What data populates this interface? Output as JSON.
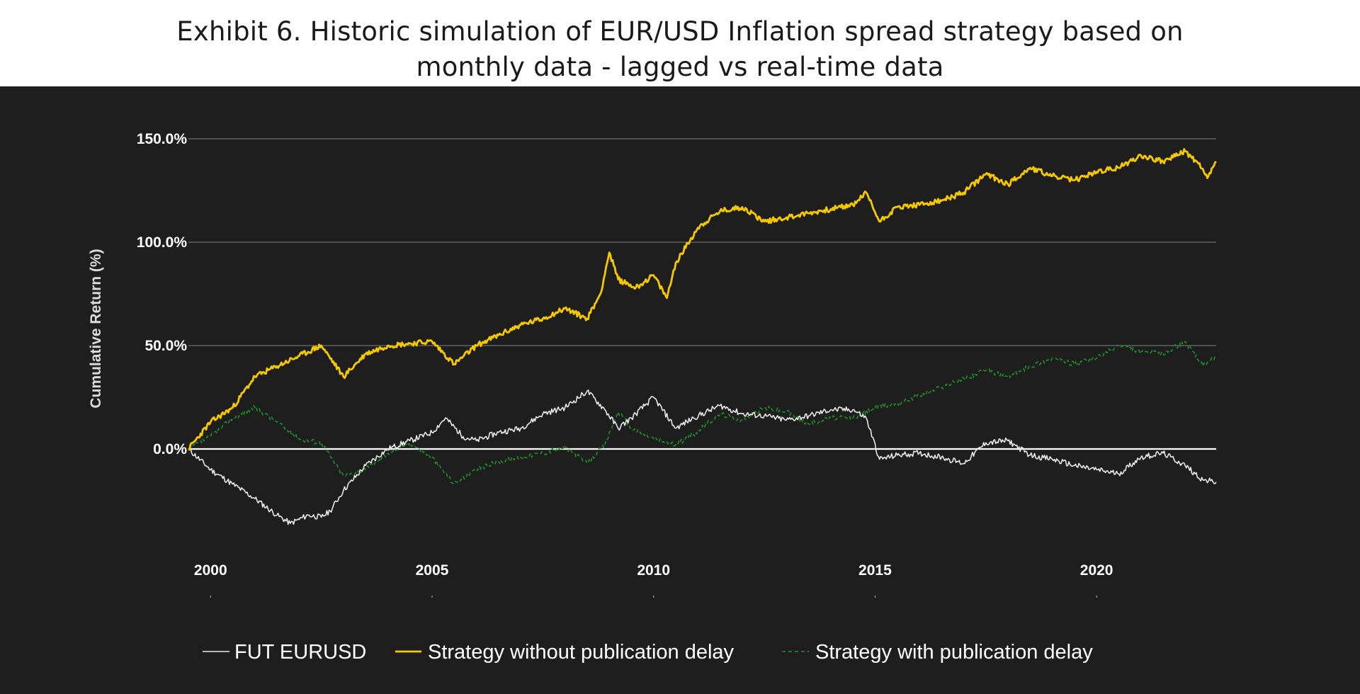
{
  "title": {
    "line1": "Exhibit 6. Historic simulation of EUR/USD Inflation spread strategy based on",
    "line2": "monthly data - lagged vs real-time data"
  },
  "colors": {
    "panel_bg": "#1e1e1e",
    "grid": "#6e6e6e",
    "zero_line": "#ffffff",
    "fut": "#e8e8e8",
    "no_delay": "#f5c800",
    "with_delay": "#1f8f2a"
  },
  "chart_data": {
    "type": "line",
    "title": "Exhibit 6. Historic simulation of EUR/USD Inflation spread strategy based on monthly data - lagged vs real-time data",
    "xlabel": "",
    "ylabel": "Cumulative Return (%)",
    "xlim": [
      1999.5,
      2022.7
    ],
    "ylim": [
      -40,
      160
    ],
    "x_ticks": [
      2000,
      2005,
      2010,
      2015,
      2020
    ],
    "x_tick_labels": [
      "2000",
      "2005",
      "2010",
      "2015",
      "2020"
    ],
    "y_ticks": [
      0,
      50,
      100,
      150
    ],
    "y_tick_labels": [
      "0.0%",
      "50.0%",
      "100.0%",
      "150.0%"
    ],
    "grid": true,
    "legend_position": "bottom",
    "series": [
      {
        "name": "FUT EURUSD",
        "style": "solid",
        "x": [
          1999.5,
          2000.0,
          2000.5,
          2001.0,
          2001.5,
          2001.8,
          2002.2,
          2002.5,
          2002.7,
          2003.0,
          2003.5,
          2004.0,
          2004.5,
          2005.0,
          2005.3,
          2005.7,
          2006.0,
          2006.5,
          2007.0,
          2007.5,
          2008.0,
          2008.5,
          2008.9,
          2009.2,
          2009.5,
          2010.0,
          2010.5,
          2010.9,
          2011.5,
          2012.0,
          2012.5,
          2013.0,
          2013.5,
          2014.0,
          2014.5,
          2014.8,
          2015.1,
          2015.5,
          2016.0,
          2016.5,
          2017.0,
          2017.5,
          2018.0,
          2018.5,
          2019.0,
          2019.5,
          2020.0,
          2020.5,
          2021.0,
          2021.5,
          2022.0,
          2022.4,
          2022.7
        ],
        "values": [
          0,
          -10,
          -17,
          -24,
          -32,
          -36,
          -32,
          -33,
          -30,
          -20,
          -8,
          0,
          4,
          8,
          15,
          6,
          4,
          8,
          10,
          17,
          20,
          28,
          19,
          10,
          15,
          25,
          10,
          15,
          21,
          17,
          16,
          14,
          16,
          19,
          19,
          15,
          -5,
          -3,
          -2,
          -4,
          -7,
          3,
          4,
          -3,
          -5,
          -8,
          -10,
          -12,
          -4,
          -2,
          -8,
          -15,
          -16
        ]
      },
      {
        "name": "Strategy without publication delay",
        "style": "solid",
        "x": [
          1999.5,
          2000.0,
          2000.5,
          2001.0,
          2001.5,
          2002.0,
          2002.5,
          2003.0,
          2003.5,
          2004.0,
          2004.5,
          2005.0,
          2005.5,
          2006.0,
          2006.5,
          2007.0,
          2007.5,
          2008.0,
          2008.5,
          2008.8,
          2009.0,
          2009.2,
          2009.6,
          2010.0,
          2010.3,
          2010.5,
          2011.0,
          2011.5,
          2012.0,
          2012.5,
          2013.0,
          2013.5,
          2014.0,
          2014.5,
          2014.8,
          2015.1,
          2015.5,
          2016.0,
          2016.5,
          2017.0,
          2017.5,
          2018.0,
          2018.5,
          2019.0,
          2019.5,
          2020.0,
          2020.5,
          2021.0,
          2021.5,
          2022.0,
          2022.3,
          2022.5,
          2022.7
        ],
        "values": [
          0,
          13,
          20,
          35,
          40,
          45,
          50,
          35,
          46,
          50,
          51,
          52,
          41,
          50,
          55,
          60,
          63,
          68,
          63,
          75,
          95,
          82,
          78,
          84,
          73,
          90,
          107,
          115,
          117,
          110,
          112,
          114,
          116,
          118,
          124,
          110,
          117,
          118,
          120,
          124,
          133,
          128,
          136,
          132,
          130,
          134,
          136,
          142,
          139,
          144,
          138,
          131,
          139
        ]
      },
      {
        "name": "Strategy with publication delay",
        "style": "dashed",
        "x": [
          1999.5,
          2000.0,
          2000.5,
          2001.0,
          2001.5,
          2002.0,
          2002.5,
          2003.0,
          2003.5,
          2004.0,
          2004.5,
          2005.0,
          2005.5,
          2006.0,
          2006.5,
          2007.0,
          2007.5,
          2008.0,
          2008.5,
          2008.9,
          2009.2,
          2009.5,
          2010.0,
          2010.5,
          2010.9,
          2011.5,
          2012.0,
          2012.5,
          2013.0,
          2013.5,
          2014.0,
          2014.5,
          2015.0,
          2015.5,
          2016.0,
          2016.5,
          2017.0,
          2017.5,
          2018.0,
          2018.5,
          2019.0,
          2019.5,
          2020.0,
          2020.5,
          2021.0,
          2021.5,
          2022.0,
          2022.4,
          2022.7
        ],
        "values": [
          0,
          6,
          15,
          20,
          13,
          5,
          3,
          -13,
          -10,
          -2,
          3,
          -4,
          -17,
          -10,
          -6,
          -4,
          -2,
          1,
          -7,
          2,
          18,
          10,
          5,
          2,
          7,
          17,
          14,
          20,
          18,
          12,
          15,
          15,
          20,
          22,
          26,
          30,
          34,
          38,
          35,
          40,
          44,
          41,
          44,
          50,
          47,
          46,
          52,
          40,
          45
        ]
      }
    ]
  },
  "legend": [
    {
      "label": "FUT EURUSD"
    },
    {
      "label": "Strategy without publication delay"
    },
    {
      "label": "Strategy with publication delay"
    }
  ]
}
